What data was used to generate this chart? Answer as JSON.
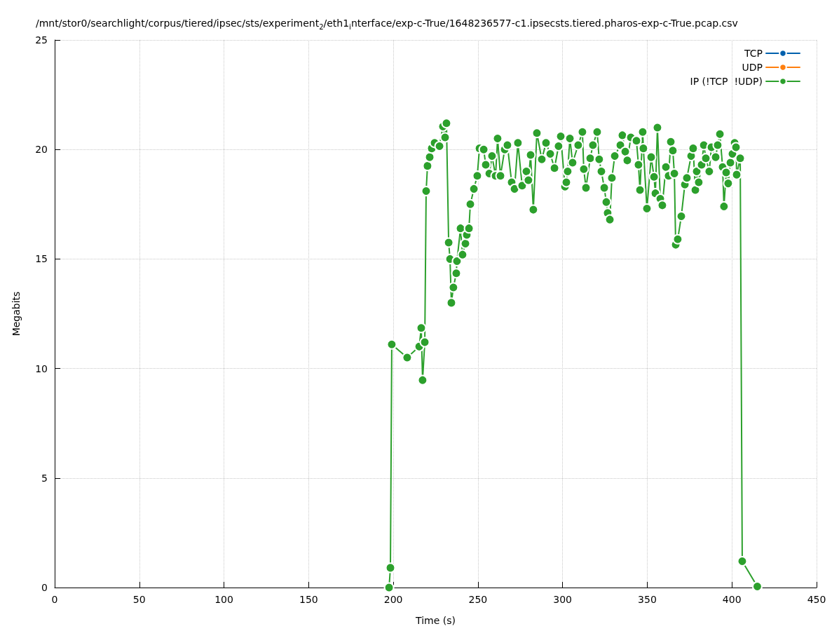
{
  "chart_data": {
    "type": "line",
    "title": "/mnt/stor0/searchlight/corpus/tiered/ipsec/sts/experiment$_{2}$/eth1$_{i}$nterface/exp-c-True/1648236577-c1.ipsecsts.tiered.pharos-exp-c-True.pcap.csv",
    "xlabel": "Time (s)",
    "ylabel": "Megabits",
    "xlim": [
      0,
      450
    ],
    "xticks": [
      0,
      50,
      100,
      150,
      200,
      250,
      300,
      350,
      400,
      450
    ],
    "ylim": [
      0,
      25
    ],
    "yticks": [
      0,
      5,
      10,
      15,
      20,
      25
    ],
    "grid": true,
    "legend": "top right",
    "marker": "circle",
    "line_style": "solid",
    "series": [
      {
        "name": "TCP",
        "color": "#0060ad"
      },
      {
        "name": "UDP",
        "color": "#ff7f0e"
      },
      {
        "name": "IP (!TCP  !UDP)",
        "color": "#2ca02c",
        "x": [
          197.5,
          198.3,
          199.1,
          208.2,
          215.3,
          216.5,
          217.3,
          218.6,
          219.4,
          220.2,
          221.5,
          222.7,
          224.4,
          227.3,
          229.3,
          230.6,
          231.4,
          232.7,
          233.5,
          234.3,
          235.5,
          237.2,
          237.6,
          239.7,
          240.9,
          242.6,
          243.4,
          244.7,
          245.5,
          247.6,
          249.6,
          250.9,
          253.4,
          254.6,
          256.7,
          258.3,
          260.4,
          261.6,
          263.3,
          265.8,
          267.4,
          269.9,
          271.6,
          273.6,
          276.1,
          278.6,
          279.8,
          281.1,
          282.7,
          284.8,
          287.7,
          290.2,
          292.7,
          295.2,
          297.6,
          298.9,
          301.4,
          302.2,
          303.0,
          304.3,
          305.9,
          309.2,
          311.7,
          312.5,
          313.8,
          316.3,
          317.9,
          320.4,
          321.6,
          322.9,
          324.6,
          325.8,
          326.6,
          327.9,
          329.1,
          330.8,
          334.1,
          335.3,
          337.0,
          338.2,
          340.3,
          343.6,
          344.8,
          345.7,
          347.3,
          347.7,
          349.8,
          352.3,
          354.0,
          354.8,
          356.0,
          357.7,
          358.9,
          361.0,
          362.6,
          363.9,
          365.1,
          366.0,
          366.8,
          368.0,
          370.1,
          372.2,
          373.4,
          375.9,
          377.1,
          378.4,
          379.2,
          380.4,
          382.1,
          383.4,
          384.6,
          386.6,
          387.9,
          390.4,
          391.6,
          392.9,
          394.5,
          395.3,
          396.6,
          397.8,
          399.1,
          400.3,
          401.6,
          402.4,
          402.8,
          404.9,
          406.1,
          415.0
        ],
        "values": [
          0,
          0.9,
          11.1,
          10.5,
          11.0,
          11.85,
          9.47,
          11.2,
          18.1,
          19.25,
          19.65,
          20.05,
          20.3,
          20.15,
          21.05,
          20.55,
          21.2,
          15.75,
          15.0,
          13.0,
          13.7,
          14.35,
          14.9,
          16.4,
          15.2,
          15.7,
          16.1,
          16.4,
          17.5,
          18.2,
          18.8,
          20.05,
          20.0,
          19.3,
          18.9,
          19.7,
          18.8,
          20.5,
          18.8,
          20.0,
          20.2,
          18.5,
          18.2,
          20.3,
          18.35,
          19.0,
          18.6,
          19.75,
          17.25,
          20.75,
          19.55,
          20.3,
          19.8,
          19.15,
          20.15,
          20.6,
          18.3,
          18.5,
          19.0,
          20.5,
          19.4,
          20.2,
          20.8,
          19.1,
          18.25,
          19.6,
          20.2,
          20.8,
          19.55,
          19.0,
          18.25,
          17.6,
          17.1,
          16.8,
          18.7,
          19.7,
          20.2,
          20.65,
          19.9,
          19.5,
          20.55,
          20.4,
          19.3,
          18.15,
          20.8,
          20.05,
          17.3,
          19.65,
          18.75,
          18.0,
          21.0,
          17.75,
          17.45,
          19.2,
          18.8,
          20.35,
          19.95,
          18.9,
          15.65,
          15.9,
          16.95,
          18.4,
          18.7,
          19.7,
          20.05,
          18.15,
          19.0,
          18.5,
          19.3,
          20.2,
          19.6,
          19.0,
          20.1,
          19.65,
          20.2,
          20.7,
          19.2,
          17.4,
          18.95,
          18.45,
          19.4,
          19.8,
          20.3,
          20.1,
          18.85,
          19.6,
          1.2,
          0.05
        ]
      }
    ]
  }
}
